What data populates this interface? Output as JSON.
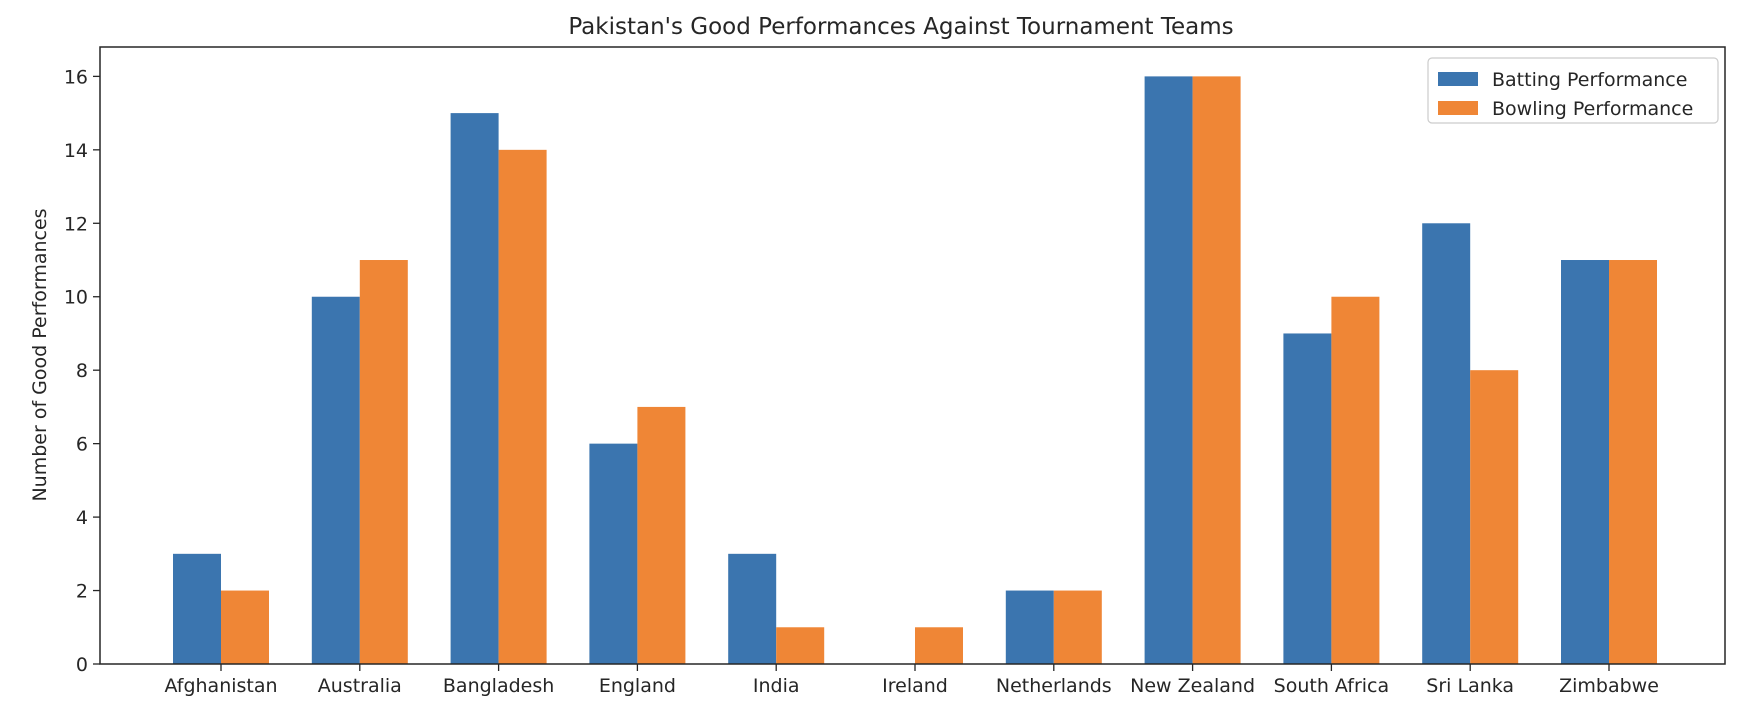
{
  "chart_data": {
    "type": "bar",
    "title": "Pakistan's Good Performances Against Tournament Teams",
    "xlabel": "",
    "ylabel": "Number of Good Performances",
    "ylim": [
      0,
      16.8
    ],
    "yticks": [
      0,
      2,
      4,
      6,
      8,
      10,
      12,
      14,
      16
    ],
    "grid": false,
    "legend_position": "top-right",
    "categories": [
      "Afghanistan",
      "Australia",
      "Bangladesh",
      "England",
      "India",
      "Ireland",
      "Netherlands",
      "New Zealand",
      "South Africa",
      "Sri Lanka",
      "Zimbabwe"
    ],
    "series": [
      {
        "name": "Batting Performance",
        "color": "#3b75af",
        "values": [
          3,
          10,
          15,
          6,
          3,
          0,
          2,
          16,
          9,
          12,
          11
        ]
      },
      {
        "name": "Bowling Performance",
        "color": "#ef8636",
        "values": [
          2,
          11,
          14,
          7,
          1,
          1,
          2,
          16,
          10,
          8,
          11
        ]
      }
    ]
  }
}
